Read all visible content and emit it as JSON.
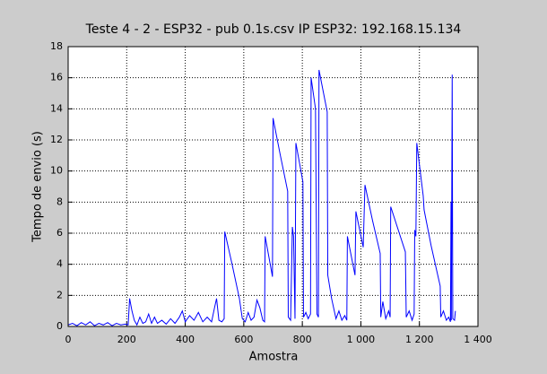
{
  "chart_data": {
    "type": "line",
    "title": "Teste 4 - 2 - ESP32 - pub 0.1s.csv IP ESP32: 192.168.15.134",
    "x_label": "Amostra",
    "y_label": "Tempo de envio (s)",
    "xlim": [
      0,
      1400
    ],
    "xticks": [
      0,
      200,
      400,
      600,
      800,
      {
        "value": 1000,
        "label": "1 000"
      },
      {
        "value": 1200,
        "label": "1 200"
      },
      {
        "value": 1400,
        "label": "1 400"
      }
    ],
    "ylim": [
      0,
      18
    ],
    "yticks": [
      0,
      2,
      4,
      6,
      8,
      10,
      12,
      14,
      16,
      18
    ],
    "grid": true,
    "color": "#0000ff",
    "x": [
      0,
      15,
      30,
      45,
      60,
      75,
      90,
      105,
      120,
      135,
      150,
      165,
      180,
      195,
      205,
      210,
      218,
      226,
      235,
      245,
      255,
      265,
      275,
      285,
      295,
      305,
      320,
      335,
      350,
      365,
      380,
      390,
      400,
      415,
      430,
      445,
      460,
      475,
      490,
      500,
      507,
      515,
      525,
      533,
      535,
      560,
      585,
      595,
      605,
      615,
      625,
      635,
      645,
      655,
      665,
      671,
      673,
      698,
      700,
      725,
      750,
      752,
      760,
      766,
      770,
      775,
      778,
      802,
      804,
      812,
      820,
      828,
      830,
      845,
      850,
      855,
      857,
      885,
      887,
      900,
      915,
      925,
      935,
      945,
      952,
      954,
      980,
      983,
      1008,
      1014,
      1040,
      1066,
      1068,
      1075,
      1085,
      1095,
      1100,
      1102,
      1152,
      1155,
      1165,
      1175,
      1182,
      1184,
      1188,
      1191,
      1213,
      1216,
      1240,
      1271,
      1273,
      1282,
      1292,
      1300,
      1306,
      1308,
      1309,
      1312,
      1314,
      1320,
      1323
    ],
    "values": [
      0.1,
      0.2,
      0.05,
      0.25,
      0.1,
      0.3,
      0.05,
      0.2,
      0.1,
      0.25,
      0.05,
      0.2,
      0.1,
      0.15,
      0.1,
      1.8,
      1.0,
      0.4,
      0.1,
      0.6,
      0.2,
      0.3,
      0.8,
      0.2,
      0.6,
      0.2,
      0.4,
      0.15,
      0.5,
      0.2,
      0.6,
      1.0,
      0.3,
      0.7,
      0.4,
      0.9,
      0.3,
      0.6,
      0.3,
      1.2,
      1.8,
      0.4,
      0.3,
      0.5,
      6.1,
      4.0,
      1.8,
      0.5,
      0.3,
      0.9,
      0.4,
      0.6,
      1.7,
      1.2,
      0.4,
      0.3,
      5.8,
      3.2,
      13.4,
      11.0,
      8.7,
      0.6,
      0.4,
      6.4,
      5.8,
      0.5,
      11.8,
      9.3,
      0.6,
      0.9,
      0.5,
      0.8,
      16.0,
      14.0,
      0.8,
      0.6,
      16.5,
      13.8,
      3.3,
      1.8,
      0.5,
      1.0,
      0.4,
      0.7,
      0.4,
      5.8,
      3.3,
      7.4,
      5.1,
      9.1,
      6.8,
      4.7,
      0.6,
      1.6,
      0.5,
      1.0,
      0.6,
      7.7,
      4.8,
      0.6,
      1.0,
      0.4,
      0.8,
      6.2,
      5.8,
      11.8,
      8.4,
      7.5,
      5.2,
      2.6,
      0.6,
      1.0,
      0.4,
      0.6,
      0.3,
      8.0,
      0.4,
      16.2,
      0.5,
      0.4,
      1.0
    ]
  }
}
